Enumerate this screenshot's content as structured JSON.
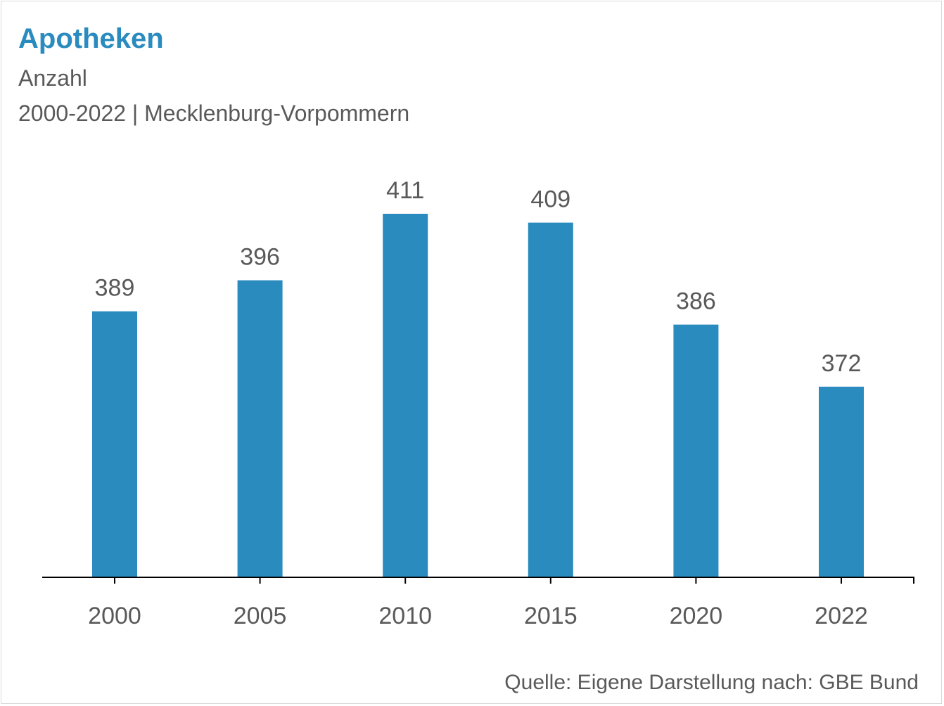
{
  "chart_data": {
    "type": "bar",
    "title": "Apotheken",
    "subtitle_lines": [
      "Anzahl",
      "2000-2022 | Mecklenburg-Vorpommern"
    ],
    "categories": [
      "2000",
      "2005",
      "2010",
      "2015",
      "2020",
      "2022"
    ],
    "values": [
      389,
      396,
      411,
      409,
      386,
      372
    ],
    "xlabel": "",
    "ylabel": "",
    "ylim": [
      329,
      412
    ],
    "grid": false,
    "legend": "none",
    "data_labels": true,
    "bar_color": "#2a8bbf",
    "source": "Quelle: Eigene Darstellung nach: GBE Bund"
  }
}
